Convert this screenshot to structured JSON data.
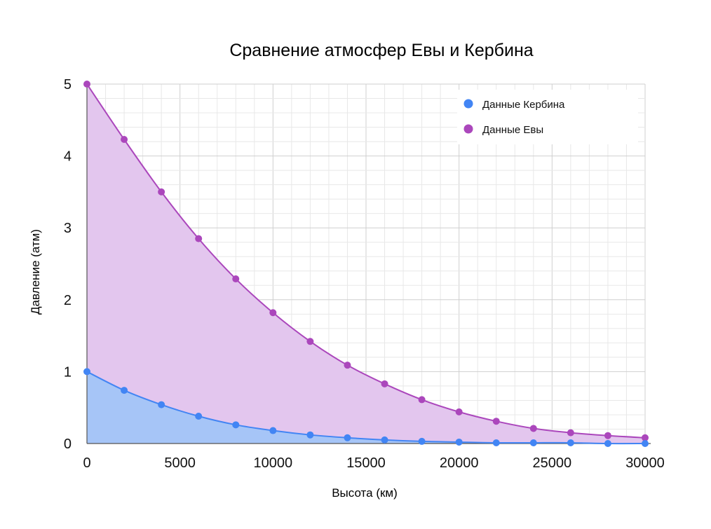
{
  "chart_data": {
    "type": "area",
    "title": "Сравнение атмосфер Евы и Кербина",
    "xlabel": "Высота (км)",
    "ylabel": "Давление (атм)",
    "xlim": [
      0,
      30000
    ],
    "ylim": [
      0,
      5
    ],
    "x_ticks": [
      "0",
      "5000",
      "10000",
      "15000",
      "20000",
      "25000",
      "30000"
    ],
    "y_ticks": [
      "0",
      "1",
      "2",
      "3",
      "4",
      "5"
    ],
    "grid": true,
    "legend_position": "top-right",
    "x": [
      0,
      2000,
      4000,
      6000,
      8000,
      10000,
      12000,
      14000,
      16000,
      18000,
      20000,
      22000,
      24000,
      26000,
      28000,
      30000
    ],
    "series": [
      {
        "name": "Данные Кербина",
        "color": "#4285f4",
        "fill": "#a6c5f7",
        "values": [
          1.0,
          0.74,
          0.54,
          0.38,
          0.26,
          0.18,
          0.12,
          0.08,
          0.05,
          0.03,
          0.02,
          0.01,
          0.01,
          0.01,
          0.0,
          0.0
        ]
      },
      {
        "name": "Данные Евы",
        "color": "#ab47bc",
        "fill": "#e3c6ee",
        "values": [
          5.0,
          4.23,
          3.5,
          2.85,
          2.29,
          1.82,
          1.42,
          1.09,
          0.83,
          0.61,
          0.44,
          0.31,
          0.21,
          0.15,
          0.11,
          0.08
        ]
      }
    ]
  }
}
